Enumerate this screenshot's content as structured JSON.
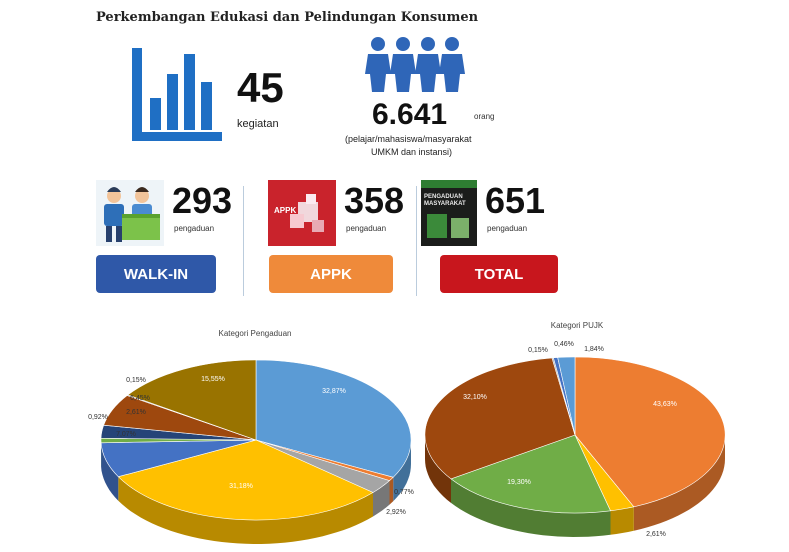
{
  "header": {
    "title": "Perkembangan Edukasi dan Pelindungan Konsumen"
  },
  "stats": {
    "kegiatan": {
      "value": "45",
      "label": "kegiatan",
      "icon": "bar-chart-icon"
    },
    "orang": {
      "value": "6.641",
      "unit": "orang",
      "desc_line1": "(pelajar/mahasiswa/masyarakat",
      "desc_line2": "UMKM dan instansi)",
      "icon": "people-icon"
    }
  },
  "channels": [
    {
      "value": "293",
      "label": "pengaduan",
      "button": "WALK-IN",
      "color": "#2f58a8",
      "icon": "customer-service-icon"
    },
    {
      "value": "358",
      "label": "pengaduan",
      "button": "APPK",
      "color": "#ef8a3a",
      "icon": "appk-app-icon",
      "icon_text": "APPK"
    },
    {
      "value": "651",
      "label": "pengaduan",
      "button": "TOTAL",
      "color": "#c8161d",
      "icon": "pengaduan-masyarakat-icon",
      "icon_text": "PENGADUAN MASYARAKAT"
    }
  ],
  "chart_data": [
    {
      "type": "pie",
      "title": "Kategori Pengaduan",
      "values": [
        32.87,
        0.77,
        2.92,
        31.18,
        7.07,
        0.92,
        2.61,
        6.45,
        0.15,
        15.55
      ],
      "value_labels": [
        "32,87%",
        "0,77%",
        "2,92%",
        "31,18%",
        "7,07%",
        "0,92%",
        "2,61%",
        "6,45%",
        "0,15%",
        "15,55%"
      ],
      "colors": [
        "#5b9bd5",
        "#ed7d31",
        "#a5a5a5",
        "#ffc000",
        "#4472c4",
        "#70ad47",
        "#264478",
        "#9e480e",
        "#636363",
        "#997300"
      ]
    },
    {
      "type": "pie",
      "title": "Kategori PUJK",
      "values": [
        43.63,
        2.61,
        19.3,
        32.1,
        0.15,
        0.46,
        1.84
      ],
      "value_labels": [
        "43,63%",
        "2,61%",
        "19,30%",
        "32,10%",
        "0,15%",
        "0,46%",
        "1,84%"
      ],
      "colors": [
        "#ed7d31",
        "#ffc000",
        "#70ad47",
        "#9e480e",
        "#a5a5a5",
        "#4472c4",
        "#5b9bd5"
      ]
    }
  ]
}
